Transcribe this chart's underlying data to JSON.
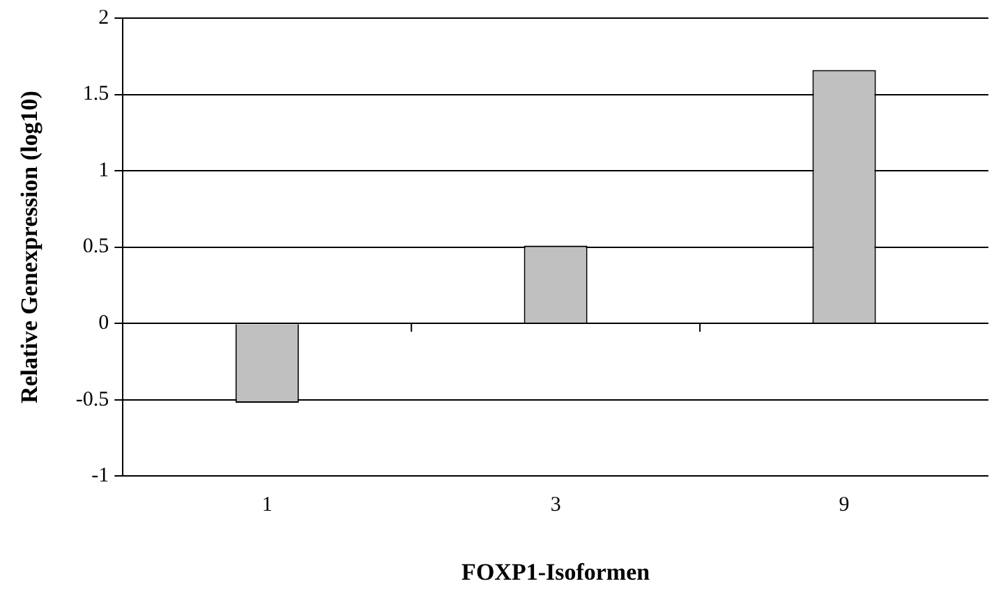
{
  "chart_data": {
    "type": "bar",
    "xlabel": "FOXP1-Isoformen",
    "ylabel": "Relative Genexpression (log10)",
    "categories": [
      "1",
      "3",
      "9"
    ],
    "values": [
      -0.52,
      0.51,
      1.66
    ],
    "color": "#c0c0c0",
    "ylim": [
      -1,
      2
    ],
    "yticks": [
      -1,
      -0.5,
      0,
      0.5,
      1,
      1.5,
      2
    ],
    "grid": "y",
    "legend": false
  }
}
